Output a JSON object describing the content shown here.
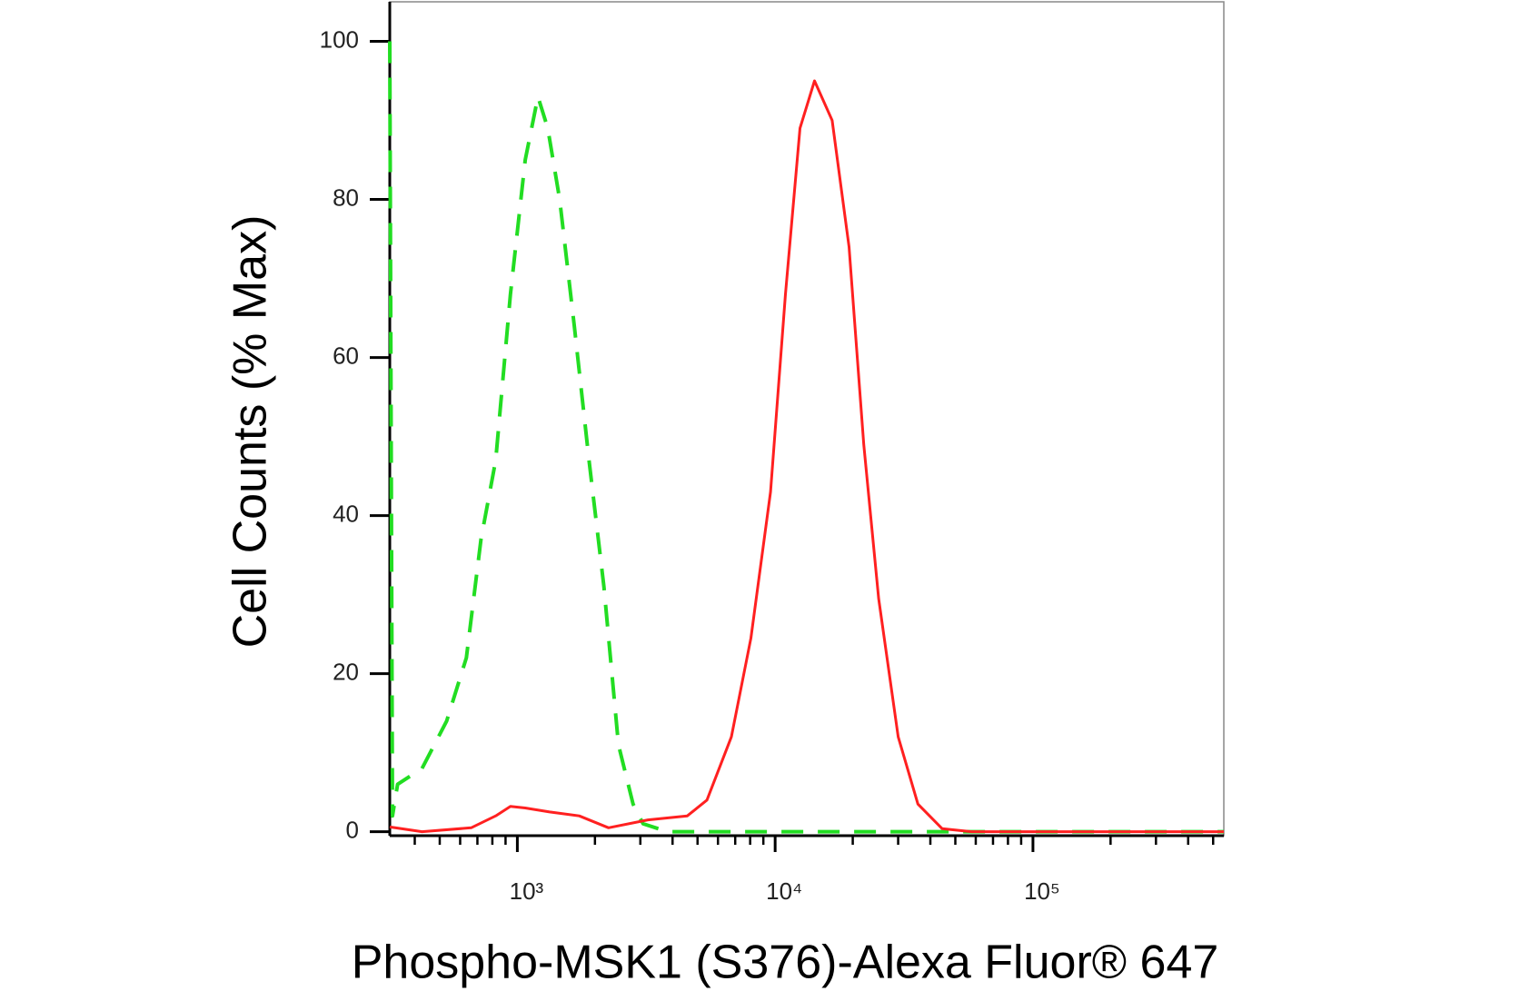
{
  "chart_data": {
    "type": "line",
    "xlabel": "Phospho-MSK1 (S376)-Alexa Fluor® 647",
    "ylabel": "Cell Counts (% Max)",
    "xscale": "log",
    "xlim": [
      320,
      550000
    ],
    "ylim": [
      -0.5,
      105
    ],
    "xticks": [
      {
        "value": 1000,
        "label": "10³"
      },
      {
        "value": 10000,
        "label": "10⁴"
      },
      {
        "value": 100000,
        "label": "10⁵"
      }
    ],
    "xminorticks": [
      400,
      500,
      600,
      700,
      800,
      900,
      2000,
      3000,
      4000,
      5000,
      6000,
      7000,
      8000,
      9000,
      20000,
      30000,
      40000,
      50000,
      60000,
      70000,
      80000,
      90000,
      200000,
      300000,
      400000,
      500000
    ],
    "yticks": [
      0,
      20,
      40,
      60,
      80,
      100
    ],
    "series": [
      {
        "color": "#22dd22",
        "dash": true,
        "x": [
          320,
          328,
          343,
          427,
          532,
          634,
          723,
          824,
          940,
          1073,
          1202,
          1312,
          1459,
          1663,
          1897,
          2166,
          2468,
          2812,
          3073,
          3826,
          10965,
          63400,
          550000
        ],
        "values": [
          100,
          2,
          6,
          8,
          14,
          22,
          37,
          47,
          68,
          85,
          93,
          89,
          80,
          64,
          47,
          31,
          11,
          3.5,
          1,
          0,
          0,
          0,
          0
        ]
      },
      {
        "color": "#ff2020",
        "dash": false,
        "x": [
          320,
          427,
          662,
          824,
          940,
          1073,
          1335,
          1738,
          2259,
          3211,
          4563,
          5439,
          6764,
          8057,
          9594,
          10960,
          12480,
          14210,
          16640,
          19340,
          22070,
          25200,
          30020,
          35790,
          44410,
          57750,
          550000
        ],
        "values": [
          0.6,
          0,
          0.5,
          2,
          3.2,
          3,
          2.5,
          2,
          0.5,
          1.5,
          2,
          4,
          12,
          24.5,
          43,
          68,
          89,
          95,
          90,
          74,
          49,
          29.5,
          12,
          3.5,
          0.4,
          0,
          0
        ]
      }
    ]
  }
}
